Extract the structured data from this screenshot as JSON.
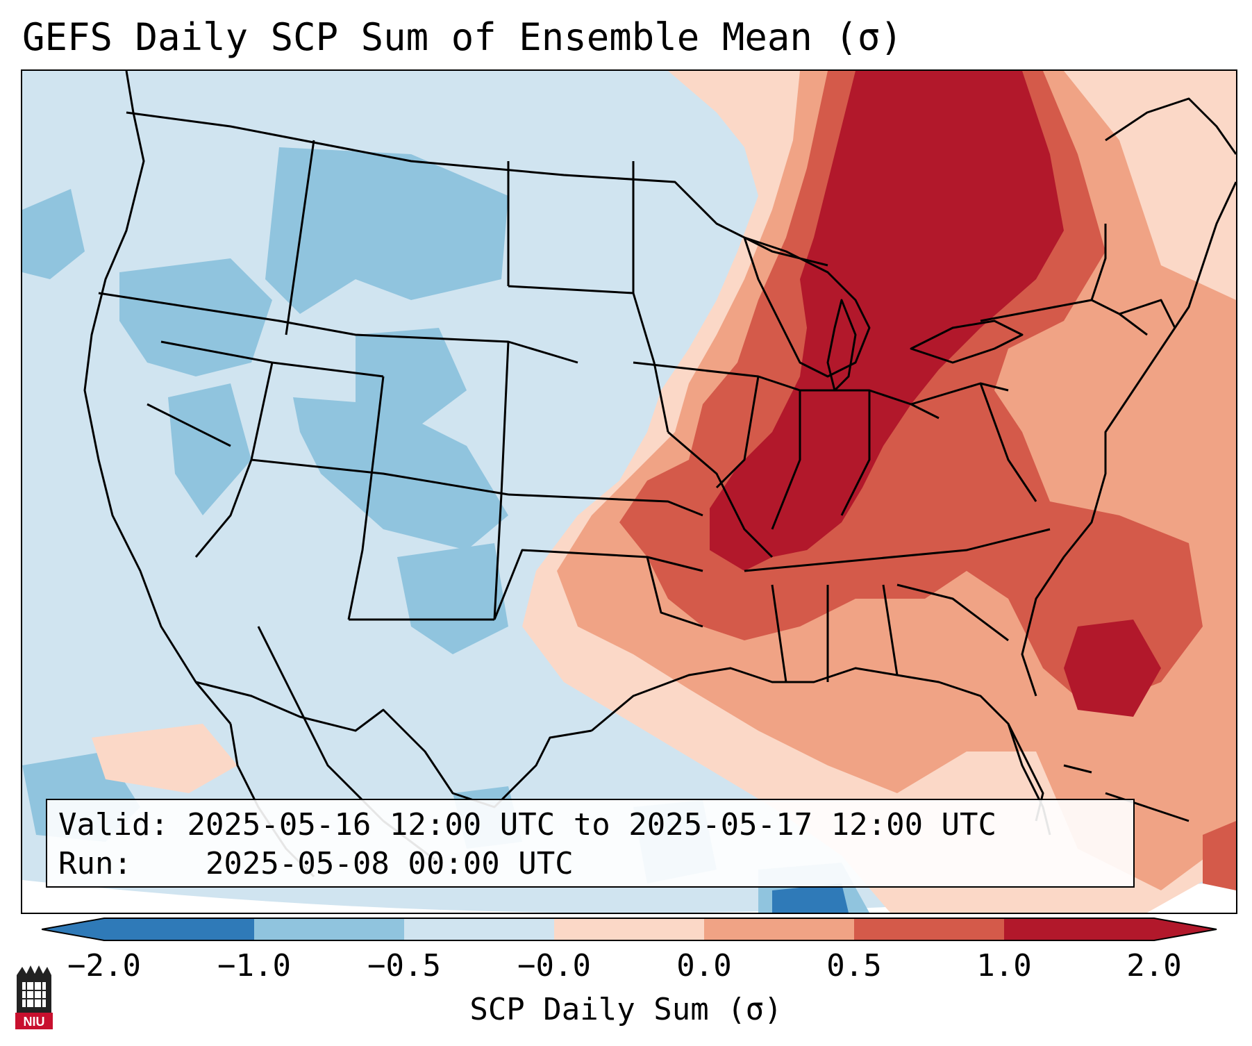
{
  "title": "GEFS Daily SCP Sum of Ensemble Mean (σ)",
  "info": {
    "valid_label": "Valid:",
    "valid_value": "2025-05-16 12:00 UTC to 2025-05-17 12:00 UTC",
    "run_label": "Run:",
    "run_value": "2025-05-08 00:00 UTC"
  },
  "colorbar": {
    "label": "SCP Daily Sum (σ)",
    "ticks": [
      "−2.0",
      "−1.0",
      "−0.5",
      "−0.0",
      "0.0",
      "0.5",
      "1.0",
      "2.0"
    ],
    "colors": [
      "#2f7ab8",
      "#90c4de",
      "#d0e4f0",
      "#f6f8fa",
      "#fbd8c7",
      "#f0a385",
      "#d45a4a",
      "#b2182b"
    ],
    "extend": "both"
  },
  "map": {
    "colors": {
      "ocean_neutral": "#d0e4f0",
      "blue_mid": "#90c4de",
      "blue_dark": "#2f7ab8",
      "light_pink": "#fbd8c7",
      "salmon": "#f0a385",
      "red": "#d45a4a",
      "dark_red": "#b2182b",
      "near_white": "#f6f8fa"
    }
  },
  "logo": {
    "icon": "niu-logo-icon",
    "text": "NIU"
  }
}
